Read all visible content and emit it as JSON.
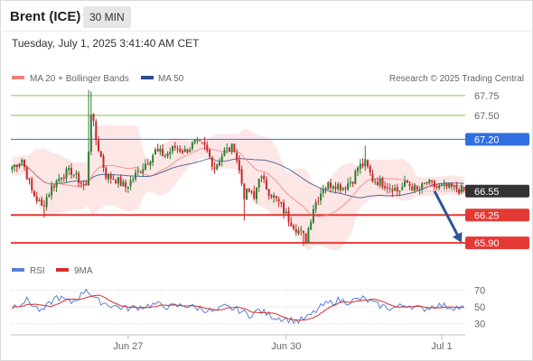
{
  "header": {
    "title": "Brent (ICE)",
    "interval": "30 MIN",
    "datetime": "Tuesday, July 1, 2025 3:41:40 AM CET"
  },
  "legend": {
    "ma20": "MA 20 + Bollinger Bands",
    "ma50": "MA 50",
    "credit": "Research © 2025 Trading Central",
    "rsi": "RSI",
    "rsi_ma": "9MA"
  },
  "colors": {
    "bull": "#2e7d32",
    "bear": "#c62828",
    "ma20": "#f08080",
    "ma50": "#2e4a8a",
    "band": "#fde6e6",
    "resistance": "#8ac44a",
    "pivot": "#2f6fe0",
    "support": "#e53935",
    "last": "#333333",
    "rsi": "#5b7fd6",
    "rsi_ma": "#d32f2f"
  },
  "chart_data": [
    {
      "type": "candlestick",
      "x_axis": {
        "ticks": [
          "Jun 27",
          "Jun 30",
          "Jul 1"
        ]
      },
      "y_range": [
        65.8,
        67.85
      ],
      "levels": [
        {
          "value": 67.75,
          "label": "67.75",
          "kind": "resistance"
        },
        {
          "value": 67.5,
          "label": "67.50",
          "kind": "resistance"
        },
        {
          "value": 67.2,
          "label": "67.20",
          "kind": "pivot"
        },
        {
          "value": 66.55,
          "label": "66.55",
          "kind": "last"
        },
        {
          "value": 66.25,
          "label": "66.25",
          "kind": "support"
        },
        {
          "value": 65.9,
          "label": "65.90",
          "kind": "support"
        }
      ],
      "forecast": {
        "from": 66.55,
        "to": 65.9
      },
      "close_anchors": [
        [
          0,
          66.85
        ],
        [
          4,
          66.95
        ],
        [
          8,
          66.55
        ],
        [
          12,
          66.35
        ],
        [
          16,
          66.6
        ],
        [
          20,
          66.75
        ],
        [
          24,
          66.8
        ],
        [
          28,
          66.65
        ],
        [
          30,
          66.6
        ],
        [
          32,
          67.55
        ],
        [
          34,
          67.2
        ],
        [
          38,
          66.75
        ],
        [
          42,
          66.7
        ],
        [
          46,
          66.6
        ],
        [
          50,
          66.75
        ],
        [
          54,
          66.9
        ],
        [
          58,
          67.05
        ],
        [
          62,
          67.0
        ],
        [
          66,
          67.1
        ],
        [
          70,
          67.05
        ],
        [
          74,
          67.15
        ],
        [
          78,
          67.1
        ],
        [
          82,
          66.85
        ],
        [
          86,
          67.05
        ],
        [
          90,
          67.1
        ],
        [
          94,
          66.5
        ],
        [
          96,
          66.55
        ],
        [
          98,
          66.45
        ],
        [
          100,
          66.75
        ],
        [
          104,
          66.55
        ],
        [
          108,
          66.4
        ],
        [
          112,
          66.2
        ],
        [
          116,
          66.05
        ],
        [
          119,
          65.95
        ],
        [
          122,
          66.35
        ],
        [
          126,
          66.6
        ],
        [
          130,
          66.65
        ],
        [
          134,
          66.6
        ],
        [
          138,
          66.7
        ],
        [
          140,
          66.85
        ],
        [
          143,
          66.9
        ],
        [
          146,
          66.7
        ],
        [
          150,
          66.65
        ],
        [
          154,
          66.6
        ],
        [
          156,
          66.55
        ],
        [
          160,
          66.65
        ],
        [
          164,
          66.55
        ],
        [
          168,
          66.65
        ],
        [
          172,
          66.6
        ],
        [
          176,
          66.6
        ],
        [
          180,
          66.58
        ],
        [
          183,
          66.55
        ]
      ]
    },
    {
      "type": "line",
      "name": "RSI",
      "y_range": [
        20,
        80
      ],
      "ticks": [
        70,
        50,
        30
      ],
      "rsi_anchors": [
        [
          0,
          50
        ],
        [
          6,
          58
        ],
        [
          12,
          44
        ],
        [
          18,
          62
        ],
        [
          24,
          55
        ],
        [
          28,
          64
        ],
        [
          30,
          72
        ],
        [
          34,
          58
        ],
        [
          40,
          52
        ],
        [
          46,
          48
        ],
        [
          52,
          50
        ],
        [
          58,
          53
        ],
        [
          64,
          50
        ],
        [
          70,
          52
        ],
        [
          76,
          48
        ],
        [
          82,
          44
        ],
        [
          86,
          50
        ],
        [
          92,
          46
        ],
        [
          96,
          40
        ],
        [
          100,
          46
        ],
        [
          106,
          38
        ],
        [
          112,
          35
        ],
        [
          116,
          33
        ],
        [
          120,
          38
        ],
        [
          126,
          52
        ],
        [
          132,
          58
        ],
        [
          136,
          56
        ],
        [
          142,
          60
        ],
        [
          148,
          52
        ],
        [
          154,
          48
        ],
        [
          160,
          53
        ],
        [
          166,
          47
        ],
        [
          172,
          52
        ],
        [
          178,
          50
        ],
        [
          183,
          48
        ]
      ]
    }
  ]
}
